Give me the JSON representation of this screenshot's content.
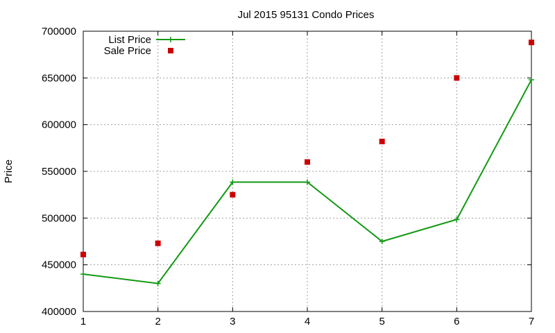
{
  "chart_data": {
    "type": "line",
    "title": "Jul 2015 95131 Condo Prices",
    "xlabel": "",
    "ylabel": "Price",
    "xlim": [
      1,
      7
    ],
    "ylim": [
      400000,
      700000
    ],
    "x_ticks": [
      "1",
      "2",
      "3",
      "4",
      "5",
      "6",
      "7"
    ],
    "y_ticks": [
      "400000",
      "450000",
      "500000",
      "550000",
      "600000",
      "650000",
      "700000"
    ],
    "grid": true,
    "legend_position": "top-left",
    "series": [
      {
        "name": "List Price",
        "style": "line-plus-markers",
        "color": "#109910",
        "x": [
          1,
          2,
          3,
          4,
          5,
          6,
          7
        ],
        "y": [
          440000,
          430000,
          538500,
          538500,
          475000,
          498500,
          648000
        ]
      },
      {
        "name": "Sale Price",
        "style": "square-points",
        "color": "#cc0000",
        "x": [
          1,
          2,
          3,
          4,
          5,
          6,
          7
        ],
        "y": [
          461000,
          473000,
          525000,
          560000,
          582000,
          650000,
          688000
        ]
      }
    ]
  }
}
